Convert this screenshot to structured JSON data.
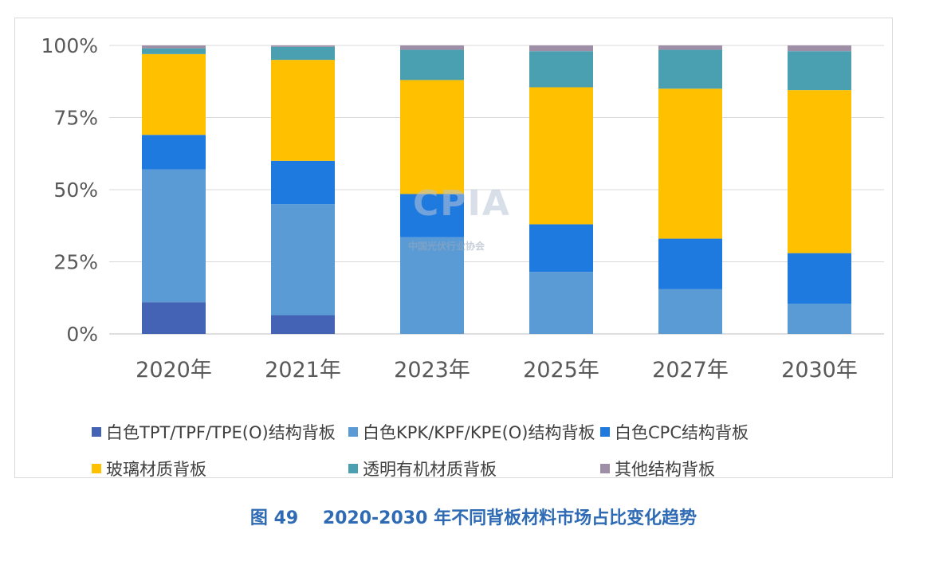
{
  "chart_data": {
    "type": "bar",
    "stacked": true,
    "categories": [
      "2020年",
      "2021年",
      "2023年",
      "2025年",
      "2027年",
      "2030年"
    ],
    "series": [
      {
        "name": "白色TPT/TPF/TPE(O)结构背板",
        "color": "#4563b4",
        "values": [
          11,
          6.5,
          0,
          0,
          0,
          0
        ]
      },
      {
        "name": "白色KPK/KPF/KPE(O)结构背板",
        "color": "#5b9bd5",
        "values": [
          46,
          38.5,
          33.5,
          21.5,
          15.5,
          10.5
        ]
      },
      {
        "name": "白色CPC结构背板",
        "color": "#1f7ae0",
        "values": [
          12,
          15,
          15,
          16.5,
          17.5,
          17.5
        ]
      },
      {
        "name": "玻璃材质背板",
        "color": "#ffc000",
        "values": [
          28,
          35,
          39.5,
          47.5,
          52,
          56.5
        ]
      },
      {
        "name": "透明有机材质背板",
        "color": "#4aa0b0",
        "values": [
          2,
          4.5,
          10.5,
          12.5,
          13.5,
          13.5
        ]
      },
      {
        "name": "其他结构背板",
        "color": "#9e8fa6",
        "values": [
          1,
          0.5,
          1.5,
          2,
          1.5,
          2
        ]
      }
    ],
    "y_ticks": [
      "0%",
      "25%",
      "50%",
      "75%",
      "100%"
    ],
    "ylim": [
      0,
      100
    ],
    "grid": true,
    "legend_position": "bottom"
  },
  "caption": "图 49    2020-2030 年不同背板材料市场占比变化趋势",
  "watermark": {
    "logo": "CPIA",
    "name": "中国光伏行业协会"
  }
}
